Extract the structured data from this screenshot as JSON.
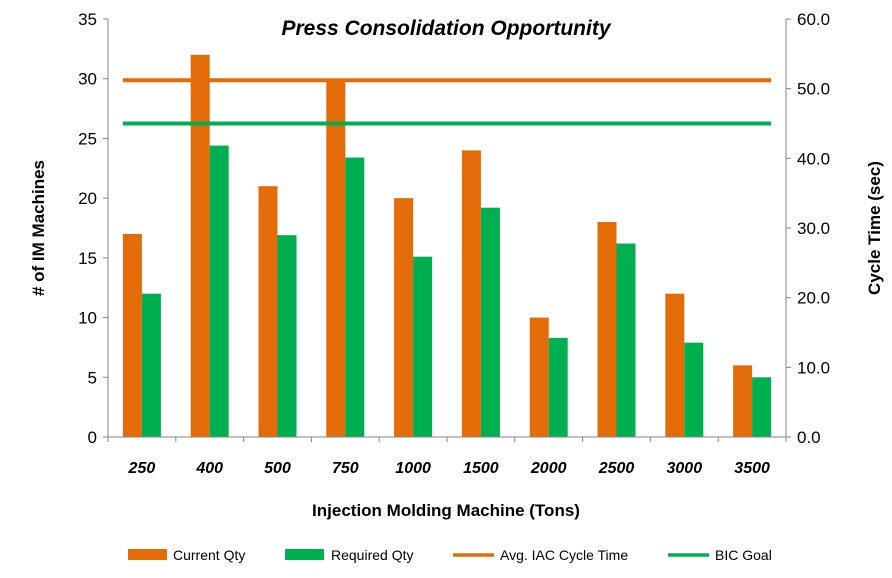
{
  "chart_data": {
    "type": "bar",
    "title": "Press Consolidation Opportunity",
    "xlabel": "Injection Molding Machine (Tons)",
    "ylabel": "# of IM Machines",
    "y2label": "Cycle Time (sec)",
    "categories": [
      "250",
      "400",
      "500",
      "750",
      "1000",
      "1500",
      "2000",
      "2500",
      "3000",
      "3500"
    ],
    "ylim": [
      0,
      35
    ],
    "yticks": [
      "0",
      "5",
      "10",
      "15",
      "20",
      "25",
      "30",
      "35"
    ],
    "y2lim": [
      0,
      60
    ],
    "y2ticks": [
      "0.0",
      "10.0",
      "20.0",
      "30.0",
      "40.0",
      "50.0",
      "60.0"
    ],
    "series": [
      {
        "name": "Current Qty",
        "kind": "bar",
        "color": "#E36C09",
        "values": [
          17,
          32,
          21,
          30,
          20,
          24,
          10,
          18,
          12,
          6
        ]
      },
      {
        "name": "Required Qty",
        "kind": "bar",
        "color": "#00B050",
        "values": [
          12,
          24.4,
          16.9,
          23.4,
          15.1,
          19.2,
          8.3,
          16.2,
          7.9,
          5
        ]
      },
      {
        "name": "Avg. IAC Cycle Time",
        "kind": "line",
        "axis": "y2",
        "color": "#E36C09",
        "value": 51.2
      },
      {
        "name": "BIC Goal",
        "kind": "line",
        "axis": "y2",
        "color": "#00B050",
        "value": 45
      }
    ],
    "grid": false,
    "legend": "bottom"
  }
}
